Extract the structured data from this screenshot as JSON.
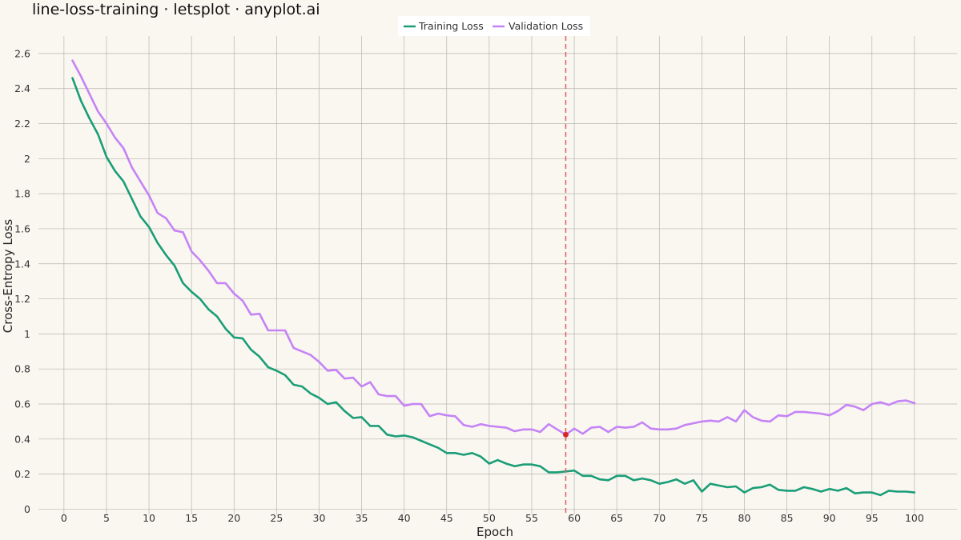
{
  "chart_data": {
    "type": "line",
    "title": "line-loss-training · letsplot · anyplot.ai",
    "xlabel": "Epoch",
    "ylabel": "Cross-Entropy Loss",
    "xlim": [
      -3,
      105
    ],
    "ylim": [
      -0.03,
      2.7
    ],
    "xticks": [
      0,
      5,
      10,
      15,
      20,
      25,
      30,
      35,
      40,
      45,
      50,
      55,
      60,
      65,
      70,
      75,
      80,
      85,
      90,
      95,
      100
    ],
    "yticks": [
      0,
      0.2,
      0.4,
      0.6,
      0.8,
      1,
      1.2,
      1.4,
      1.6,
      1.8,
      2,
      2.2,
      2.4,
      2.6
    ],
    "grid": true,
    "legend_position": "top",
    "x": [
      1,
      2,
      3,
      4,
      5,
      6,
      7,
      8,
      9,
      10,
      11,
      12,
      13,
      14,
      15,
      16,
      17,
      18,
      19,
      20,
      21,
      22,
      23,
      24,
      25,
      26,
      27,
      28,
      29,
      30,
      31,
      32,
      33,
      34,
      35,
      36,
      37,
      38,
      39,
      40,
      41,
      42,
      43,
      44,
      45,
      46,
      47,
      48,
      49,
      50,
      51,
      52,
      53,
      54,
      55,
      56,
      57,
      58,
      59,
      60,
      61,
      62,
      63,
      64,
      65,
      66,
      67,
      68,
      69,
      70,
      71,
      72,
      73,
      74,
      75,
      76,
      77,
      78,
      79,
      80,
      81,
      82,
      83,
      84,
      85,
      86,
      87,
      88,
      89,
      90,
      91,
      92,
      93,
      94,
      95,
      96,
      97,
      98,
      99,
      100
    ],
    "series": [
      {
        "name": "Training Loss",
        "color": "#1A9E77",
        "values": [
          2.46,
          2.33,
          2.23,
          2.14,
          2.01,
          1.93,
          1.87,
          1.77,
          1.67,
          1.61,
          1.52,
          1.45,
          1.39,
          1.29,
          1.24,
          1.2,
          1.14,
          1.1,
          1.03,
          0.98,
          0.975,
          0.91,
          0.87,
          0.81,
          0.79,
          0.765,
          0.71,
          0.7,
          0.66,
          0.635,
          0.6,
          0.61,
          0.56,
          0.52,
          0.525,
          0.475,
          0.475,
          0.425,
          0.415,
          0.42,
          0.41,
          0.39,
          0.37,
          0.35,
          0.32,
          0.32,
          0.31,
          0.32,
          0.3,
          0.26,
          0.28,
          0.26,
          0.245,
          0.255,
          0.255,
          0.245,
          0.21,
          0.21,
          0.215,
          0.22,
          0.19,
          0.19,
          0.17,
          0.165,
          0.19,
          0.19,
          0.165,
          0.175,
          0.165,
          0.145,
          0.155,
          0.17,
          0.145,
          0.165,
          0.1,
          0.145,
          0.135,
          0.125,
          0.13,
          0.095,
          0.12,
          0.125,
          0.14,
          0.11,
          0.105,
          0.105,
          0.125,
          0.115,
          0.1,
          0.115,
          0.105,
          0.12,
          0.09,
          0.095,
          0.095,
          0.08,
          0.105,
          0.1,
          0.1,
          0.095
        ]
      },
      {
        "name": "Validation Loss",
        "color": "#C583F5",
        "values": [
          2.56,
          2.47,
          2.37,
          2.27,
          2.2,
          2.12,
          2.06,
          1.95,
          1.87,
          1.79,
          1.69,
          1.66,
          1.59,
          1.58,
          1.47,
          1.42,
          1.36,
          1.29,
          1.29,
          1.23,
          1.19,
          1.11,
          1.115,
          1.02,
          1.02,
          1.02,
          0.92,
          0.9,
          0.88,
          0.84,
          0.79,
          0.795,
          0.745,
          0.75,
          0.7,
          0.725,
          0.655,
          0.645,
          0.645,
          0.59,
          0.6,
          0.6,
          0.53,
          0.545,
          0.535,
          0.53,
          0.48,
          0.47,
          0.485,
          0.475,
          0.47,
          0.465,
          0.445,
          0.455,
          0.455,
          0.44,
          0.485,
          0.455,
          0.425,
          0.46,
          0.43,
          0.465,
          0.47,
          0.44,
          0.47,
          0.465,
          0.47,
          0.495,
          0.46,
          0.455,
          0.455,
          0.46,
          0.48,
          0.49,
          0.5,
          0.505,
          0.5,
          0.525,
          0.5,
          0.565,
          0.525,
          0.505,
          0.5,
          0.535,
          0.53,
          0.555,
          0.555,
          0.55,
          0.545,
          0.535,
          0.56,
          0.595,
          0.585,
          0.565,
          0.6,
          0.61,
          0.595,
          0.615,
          0.62,
          0.605
        ]
      }
    ],
    "annotations": [
      {
        "type": "vline",
        "x": 59,
        "color": "#E06060",
        "style": "dashed"
      },
      {
        "type": "point",
        "x": 59,
        "y": 0.425,
        "color": "#D62728"
      }
    ]
  }
}
